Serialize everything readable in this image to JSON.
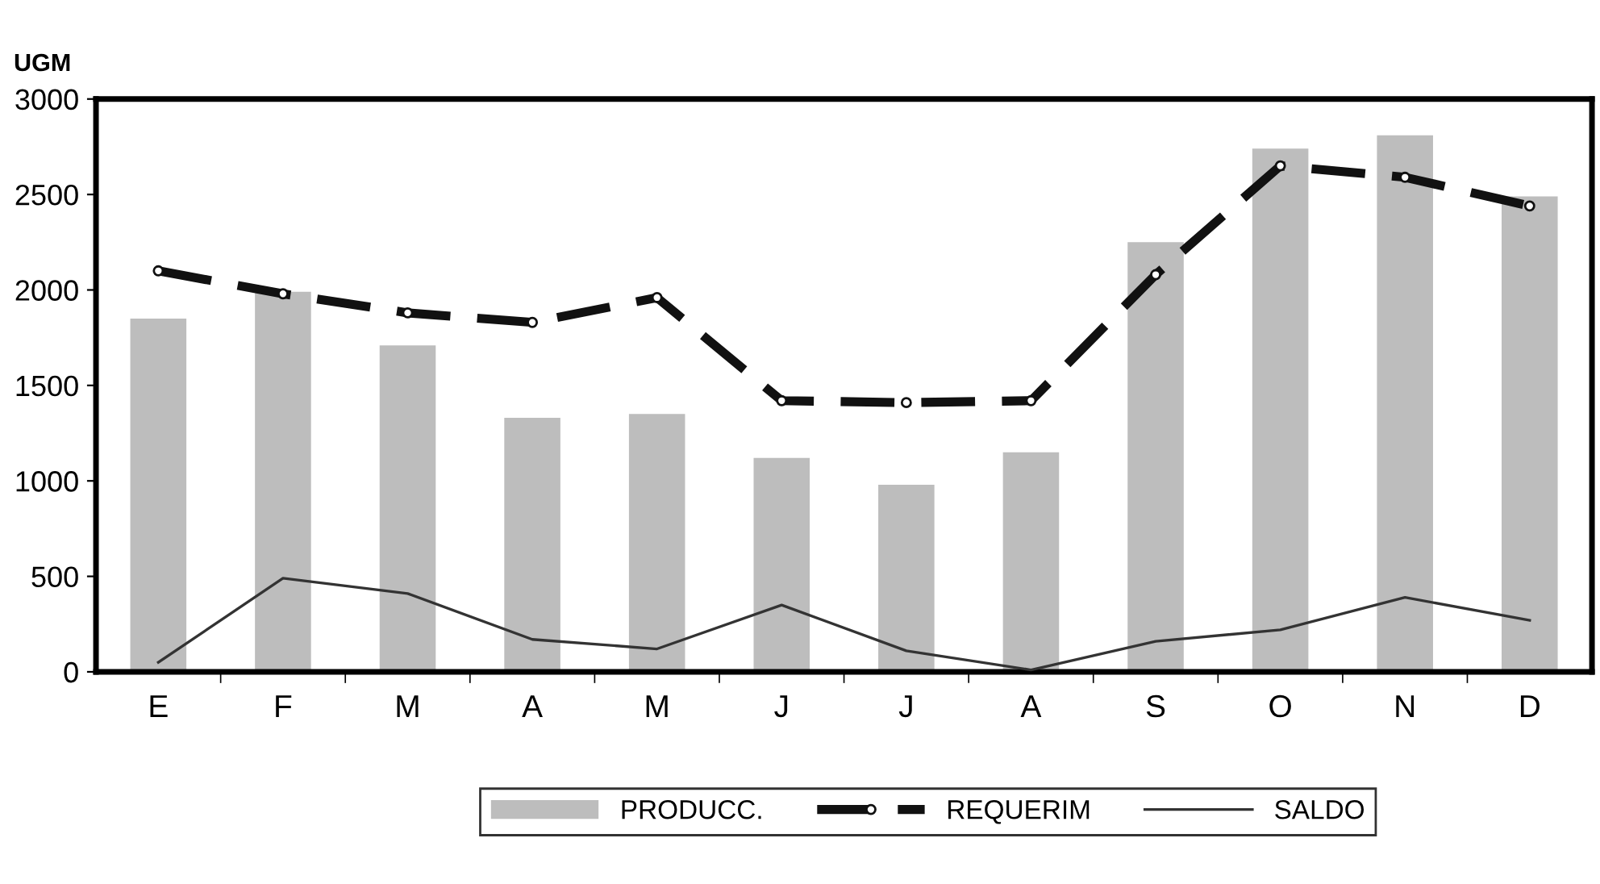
{
  "chart_data": {
    "type": "bar",
    "ylabel": "UGM",
    "categories": [
      "E",
      "F",
      "M",
      "A",
      "M",
      "J",
      "J",
      "A",
      "S",
      "O",
      "N",
      "D"
    ],
    "series": [
      {
        "name": "PRODUCC.",
        "color": "#bdbdbd",
        "values": [
          1850,
          1990,
          1710,
          1330,
          1350,
          1120,
          980,
          1150,
          2250,
          2740,
          2810,
          2490
        ]
      },
      {
        "name": "REQUERIM",
        "type": "line",
        "color": "#111111",
        "line_style": "dashed",
        "marker": "circle",
        "values": [
          2100,
          1980,
          1880,
          1830,
          1960,
          1420,
          1410,
          1420,
          2080,
          2650,
          2590,
          2440
        ]
      },
      {
        "name": "SALDO",
        "type": "line",
        "color": "#333333",
        "line_style": "solid",
        "marker": "none",
        "values": [
          50,
          490,
          410,
          170,
          120,
          350,
          110,
          10,
          160,
          220,
          390,
          270
        ]
      }
    ],
    "ylim": [
      0,
      3000
    ],
    "yticks": [
      0,
      500,
      1000,
      1500,
      2000,
      2500,
      3000
    ],
    "grid": false,
    "legend": "bottom"
  }
}
